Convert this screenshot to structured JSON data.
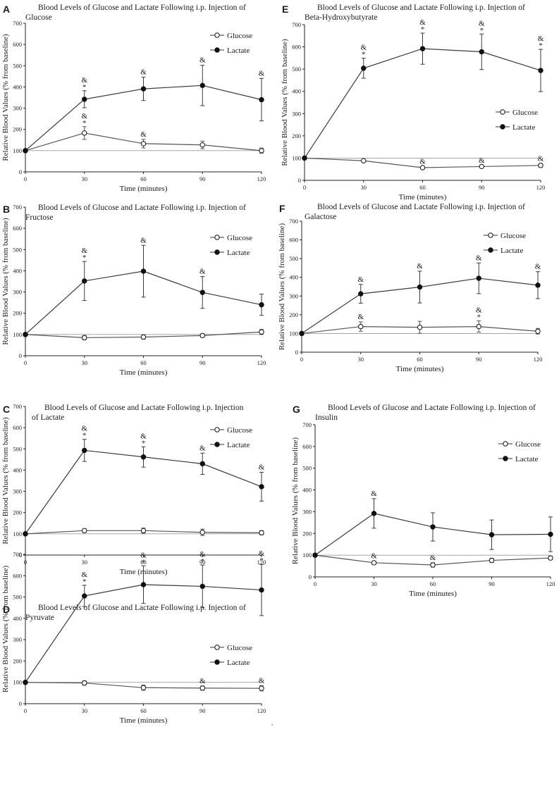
{
  "figure": {
    "x_label": "Time (minutes)",
    "y_label": "Relative Blood Values (% from baseline)"
  },
  "chart_data": [
    {
      "panel": "A",
      "type": "line",
      "title_line1": "Blood Levels of Glucose and Lactate Following i.p. Injection of",
      "title_line2": "Glucose",
      "xlabel": "Time (minutes)",
      "ylabel": "Relative Blood Values (% from baseline)",
      "x": [
        0,
        30,
        60,
        90,
        120
      ],
      "x_ticks": [
        0,
        30,
        60,
        90,
        120
      ],
      "ylim": [
        0,
        700
      ],
      "y_ticks": [
        0,
        100,
        200,
        300,
        400,
        500,
        600,
        700
      ],
      "baseline": 100,
      "legend_position": "top-right",
      "series": [
        {
          "name": "Glucose",
          "marker": "open",
          "values": [
            100,
            183,
            133,
            127,
            100
          ],
          "err": [
            0,
            30,
            20,
            18,
            12
          ],
          "sig": [
            "",
            "&*",
            "&",
            "",
            ""
          ]
        },
        {
          "name": "Lactate",
          "marker": "filled",
          "values": [
            100,
            342,
            391,
            407,
            340
          ],
          "err": [
            0,
            40,
            55,
            95,
            100
          ],
          "sig": [
            "",
            "&*",
            "&",
            "&",
            "&"
          ]
        }
      ]
    },
    {
      "panel": "B",
      "type": "line",
      "title_line1": "Blood Levels of Glucose and Lactate Following i.p. Injection of",
      "title_line2": "Fructose",
      "xlabel": "Time (minutes)",
      "ylabel": "Relative Blood Values (% from baseline)",
      "x": [
        0,
        30,
        60,
        90,
        120
      ],
      "x_ticks": [
        0,
        30,
        60,
        90,
        120
      ],
      "ylim": [
        0,
        700
      ],
      "y_ticks": [
        0,
        100,
        200,
        300,
        400,
        500,
        600,
        700
      ],
      "baseline": 100,
      "legend_position": "top-right",
      "series": [
        {
          "name": "Glucose",
          "marker": "open",
          "values": [
            100,
            85,
            88,
            95,
            112
          ],
          "err": [
            0,
            10,
            10,
            8,
            12
          ],
          "sig": [
            "",
            "",
            "",
            "",
            ""
          ]
        },
        {
          "name": "Lactate",
          "marker": "filled",
          "values": [
            100,
            352,
            398,
            298,
            240
          ],
          "err": [
            0,
            92,
            122,
            75,
            50
          ],
          "sig": [
            "",
            "&*",
            "&",
            "&",
            ""
          ]
        }
      ]
    },
    {
      "panel": "C",
      "type": "line",
      "title_line1": "Blood Levels of Glucose and Lactate Following i.p. Injection",
      "title_line2": "of Lactate",
      "xlabel": "Time (minutes)",
      "ylabel": "Relative Blood Values (% from baseline)",
      "x": [
        0,
        30,
        60,
        90,
        120
      ],
      "x_ticks": [
        0,
        30,
        60,
        90,
        120
      ],
      "ylim": [
        0,
        700
      ],
      "y_ticks": [
        0,
        100,
        200,
        300,
        400,
        500,
        600,
        700
      ],
      "baseline": 100,
      "legend_position": "top-right",
      "series": [
        {
          "name": "Glucose",
          "marker": "open",
          "values": [
            100,
            115,
            115,
            107,
            105
          ],
          "err": [
            0,
            8,
            12,
            15,
            10
          ],
          "sig": [
            "",
            "",
            "",
            "",
            ""
          ]
        },
        {
          "name": "Lactate",
          "marker": "filled",
          "values": [
            100,
            493,
            462,
            430,
            322
          ],
          "err": [
            0,
            52,
            48,
            50,
            68
          ],
          "sig": [
            "",
            "&*",
            "&*",
            "&",
            "&"
          ]
        }
      ]
    },
    {
      "panel": "D",
      "type": "line",
      "title_line1": "Blood Levels of Glucose and Lactate Following i.p. Injection of",
      "title_line2": "Pyruvate",
      "xlabel": "Time (minutes)",
      "ylabel": "Relative Blood Values (% from baseline)",
      "x": [
        0,
        30,
        60,
        90,
        120
      ],
      "x_ticks": [
        0,
        30,
        60,
        90,
        120
      ],
      "ylim": [
        0,
        700
      ],
      "y_ticks": [
        0,
        100,
        200,
        300,
        400,
        500,
        600,
        700
      ],
      "baseline": 100,
      "legend_position": "bottom-right",
      "series": [
        {
          "name": "Glucose",
          "marker": "open",
          "values": [
            100,
            97,
            75,
            73,
            72
          ],
          "err": [
            0,
            10,
            12,
            10,
            12
          ],
          "sig": [
            "",
            "",
            "",
            "&",
            "&"
          ]
        },
        {
          "name": "Lactate",
          "marker": "filled",
          "values": [
            100,
            505,
            558,
            550,
            533
          ],
          "err": [
            0,
            50,
            88,
            100,
            120
          ],
          "sig": [
            "",
            "&*",
            "&*",
            "&*",
            "&*"
          ]
        }
      ]
    },
    {
      "panel": "E",
      "type": "line",
      "title_line1": "Blood Levels of Glucose and Lactate Following i.p. Injection of",
      "title_line2": "Beta-Hydroxybutyrate",
      "xlabel": "Time (minutes)",
      "ylabel": "Relative Blood Values (% from baseline)",
      "x": [
        0,
        30,
        60,
        90,
        120
      ],
      "x_ticks": [
        0,
        30,
        60,
        90,
        120
      ],
      "ylim": [
        0,
        700
      ],
      "y_ticks": [
        0,
        100,
        200,
        300,
        400,
        500,
        600,
        700
      ],
      "baseline": 100,
      "legend_position": "middle-right",
      "series": [
        {
          "name": "Glucose",
          "marker": "open",
          "values": [
            100,
            88,
            57,
            62,
            67
          ],
          "err": [
            0,
            5,
            5,
            5,
            8
          ],
          "sig": [
            "",
            "",
            "&",
            "&",
            "&"
          ]
        },
        {
          "name": "Lactate",
          "marker": "filled",
          "values": [
            100,
            504,
            592,
            578,
            494
          ],
          "err": [
            0,
            45,
            70,
            80,
            95
          ],
          "sig": [
            "",
            "&*",
            "&*",
            "&*",
            "&*"
          ]
        }
      ]
    },
    {
      "panel": "F",
      "type": "line",
      "title_line1": "Blood Levels of Glucose and Lactate Following i.p. Injection of",
      "title_line2": "Galactose",
      "xlabel": "Time (minutes)",
      "ylabel": "Relative Blood Values (% from baseline)",
      "x": [
        0,
        30,
        60,
        90,
        120
      ],
      "x_ticks": [
        0,
        30,
        60,
        90,
        120
      ],
      "ylim": [
        0,
        700
      ],
      "y_ticks": [
        0,
        100,
        200,
        300,
        400,
        500,
        600,
        700
      ],
      "baseline": 100,
      "legend_position": "top-right",
      "series": [
        {
          "name": "Glucose",
          "marker": "open",
          "values": [
            100,
            137,
            133,
            137,
            112
          ],
          "err": [
            0,
            25,
            32,
            30,
            15
          ],
          "sig": [
            "",
            "&",
            "",
            "&*",
            ""
          ]
        },
        {
          "name": "Lactate",
          "marker": "filled",
          "values": [
            100,
            312,
            348,
            395,
            358
          ],
          "err": [
            0,
            50,
            85,
            82,
            72
          ],
          "sig": [
            "",
            "&",
            "&",
            "&",
            "&"
          ]
        }
      ]
    },
    {
      "panel": "G",
      "type": "line",
      "title_line1": "Blood Levels of Glucose and Lactate Following i.p. Injection of",
      "title_line2": "Insulin",
      "xlabel": "Time (minutes)",
      "ylabel": "Relative Blood Values (% from baseline)",
      "x": [
        0,
        30,
        60,
        90,
        120
      ],
      "x_ticks": [
        0,
        30,
        60,
        90,
        120
      ],
      "ylim": [
        0,
        700
      ],
      "y_ticks": [
        0,
        100,
        200,
        300,
        400,
        500,
        600,
        700
      ],
      "baseline": 100,
      "legend_position": "top-right",
      "series": [
        {
          "name": "Glucose",
          "marker": "open",
          "values": [
            100,
            65,
            55,
            76,
            87
          ],
          "err": [
            0,
            8,
            10,
            10,
            8
          ],
          "sig": [
            "",
            "&",
            "&",
            "",
            ""
          ]
        },
        {
          "name": "Lactate",
          "marker": "filled",
          "values": [
            100,
            292,
            230,
            194,
            196
          ],
          "err": [
            0,
            68,
            65,
            68,
            80
          ],
          "sig": [
            "",
            "&",
            "",
            "",
            ""
          ]
        }
      ]
    }
  ]
}
